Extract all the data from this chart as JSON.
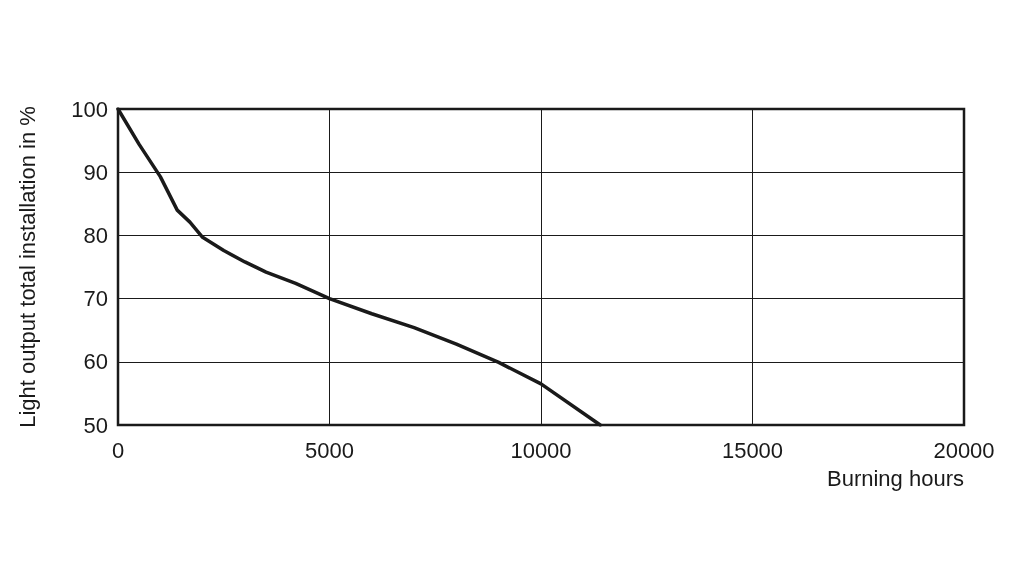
{
  "chart_data": {
    "type": "line",
    "xlabel": "Burning hours",
    "ylabel": "Light output total installation in %",
    "x": [
      0,
      500,
      1000,
      1400,
      1700,
      2000,
      2500,
      3000,
      3500,
      4200,
      5000,
      6000,
      7000,
      8000,
      9000,
      10000,
      11400
    ],
    "values": [
      100,
      94.4,
      89.3,
      84,
      82.1,
      79.7,
      77.6,
      75.8,
      74.2,
      72.4,
      70,
      67.6,
      65.4,
      62.8,
      59.9,
      56.5,
      50
    ],
    "color": "#1a1a1a",
    "xlim": [
      0,
      20000
    ],
    "xticks": [
      0,
      5000,
      10000,
      15000,
      20000
    ],
    "ylim": [
      50,
      100
    ],
    "yticks": [
      50,
      60,
      70,
      80,
      90,
      100
    ],
    "grid": true,
    "marker": "none",
    "line_style": "solid"
  }
}
